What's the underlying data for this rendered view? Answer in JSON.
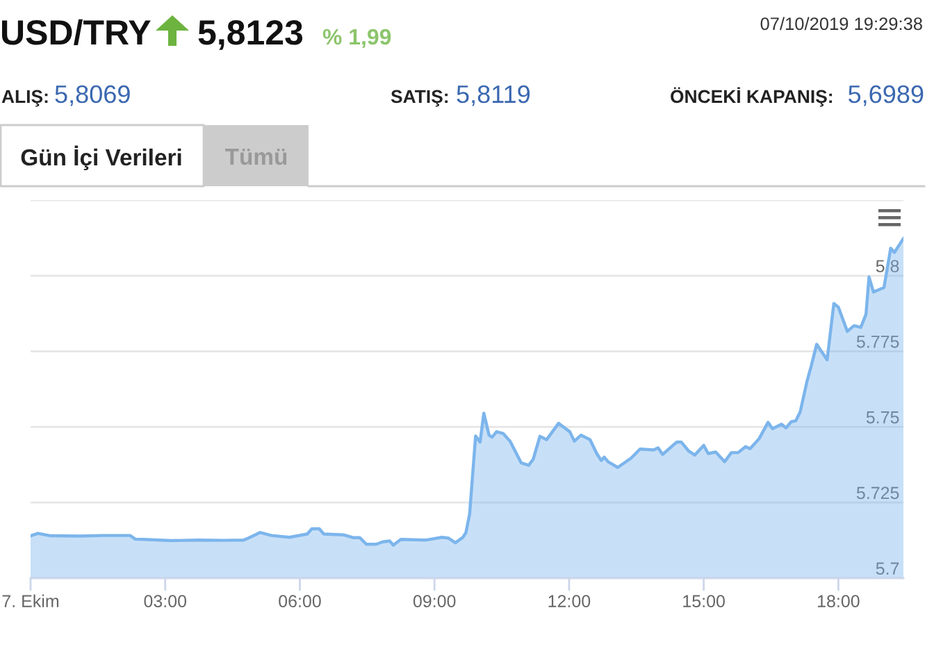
{
  "chart_data": {
    "type": "area",
    "title": "USD/TRY",
    "annotations": [
      "5,8123",
      "% 1,99",
      "07/10/2019 19:29:38",
      "ALIŞ:",
      "5,8069",
      "SATIŞ:",
      "5,8119",
      "ÖNCEKİ KAPANIŞ:",
      "5,6989",
      "Gün İçi Verileri",
      "Tümü"
    ],
    "x": [
      "2019-10-07T00:00",
      "2019-10-07T00:10",
      "2019-10-07T00:27",
      "2019-10-07T01:06",
      "2019-10-07T01:36",
      "2019-10-07T02:13",
      "2019-10-07T02:20",
      "2019-10-07T02:31",
      "2019-10-07T03:08",
      "2019-10-07T03:44",
      "2019-10-07T04:18",
      "2019-10-07T04:45",
      "2019-10-07T04:51",
      "2019-10-07T05:07",
      "2019-10-07T05:22",
      "2019-10-07T05:46",
      "2019-10-07T06:10",
      "2019-10-07T06:16",
      "2019-10-07T06:26",
      "2019-10-07T06:32",
      "2019-10-07T06:59",
      "2019-10-07T07:11",
      "2019-10-07T07:20",
      "2019-10-07T07:29",
      "2019-10-07T07:42",
      "2019-10-07T07:51",
      "2019-10-07T08:00",
      "2019-10-07T08:05",
      "2019-10-07T08:15",
      "2019-10-07T08:49",
      "2019-10-07T09:10",
      "2019-10-07T09:19",
      "2019-10-07T09:28",
      "2019-10-07T09:38",
      "2019-10-07T09:42",
      "2019-10-07T09:47",
      "2019-10-07T09:55",
      "2019-10-07T10:01",
      "2019-10-07T10:06",
      "2019-10-07T10:13",
      "2019-10-07T10:17",
      "2019-10-07T10:23",
      "2019-10-07T10:32",
      "2019-10-07T10:41",
      "2019-10-07T10:56",
      "2019-10-07T11:06",
      "2019-10-07T11:12",
      "2019-10-07T11:21",
      "2019-10-07T11:30",
      "2019-10-07T11:46",
      "2019-10-07T12:01",
      "2019-10-07T12:07",
      "2019-10-07T12:16",
      "2019-10-07T12:28",
      "2019-10-07T12:37",
      "2019-10-07T12:43",
      "2019-10-07T12:47",
      "2019-10-07T12:52",
      "2019-10-07T13:05",
      "2019-10-07T13:23",
      "2019-10-07T13:35",
      "2019-10-07T13:53",
      "2019-10-07T13:59",
      "2019-10-07T14:05",
      "2019-10-07T14:24",
      "2019-10-07T14:30",
      "2019-10-07T14:40",
      "2019-10-07T14:48",
      "2019-10-07T15:00",
      "2019-10-07T15:06",
      "2019-10-07T15:16",
      "2019-10-07T15:28",
      "2019-10-07T15:37",
      "2019-10-07T15:46",
      "2019-10-07T15:56",
      "2019-10-07T16:02",
      "2019-10-07T16:14",
      "2019-10-07T16:26",
      "2019-10-07T16:32",
      "2019-10-07T16:44",
      "2019-10-07T16:50",
      "2019-10-07T16:57",
      "2019-10-07T17:03",
      "2019-10-07T17:09",
      "2019-10-07T17:18",
      "2019-10-07T17:24",
      "2019-10-07T17:31",
      "2019-10-07T17:45",
      "2019-10-07T17:54",
      "2019-10-07T18:00",
      "2019-10-07T18:12",
      "2019-10-07T18:21",
      "2019-10-07T18:30",
      "2019-10-07T18:37",
      "2019-10-07T18:41",
      "2019-10-07T18:47",
      "2019-10-07T19:01",
      "2019-10-07T19:10",
      "2019-10-07T19:15",
      "2019-10-07T19:27"
    ],
    "series": [
      {
        "color": "#7cb5ec",
        "values": [
          5.714,
          5.7148,
          5.714,
          5.7139,
          5.7141,
          5.7141,
          5.7129,
          5.7128,
          5.7124,
          5.7126,
          5.7125,
          5.7126,
          5.7132,
          5.7151,
          5.7141,
          5.7135,
          5.7146,
          5.7163,
          5.7163,
          5.7146,
          5.7143,
          5.7134,
          5.7134,
          5.7112,
          5.7112,
          5.712,
          5.7123,
          5.7109,
          5.7128,
          5.7126,
          5.7135,
          5.7132,
          5.7117,
          5.7135,
          5.715,
          5.7212,
          5.747,
          5.745,
          5.7545,
          5.7473,
          5.7466,
          5.7484,
          5.7478,
          5.7453,
          5.7381,
          5.7373,
          5.7393,
          5.7469,
          5.7458,
          5.7512,
          5.7484,
          5.7453,
          5.7473,
          5.7458,
          5.7412,
          5.7389,
          5.74,
          5.7385,
          5.7366,
          5.7397,
          5.7427,
          5.7424,
          5.7431,
          5.7409,
          5.745,
          5.745,
          5.742,
          5.7407,
          5.7439,
          5.7412,
          5.7417,
          5.7385,
          5.7415,
          5.7415,
          5.7435,
          5.7428,
          5.7461,
          5.7515,
          5.7494,
          5.7509,
          5.7497,
          5.7517,
          5.752,
          5.755,
          5.765,
          5.7704,
          5.7773,
          5.7722,
          5.7908,
          5.7896,
          5.7816,
          5.7835,
          5.7829,
          5.7873,
          5.7996,
          5.7946,
          5.7961,
          5.8091,
          5.8077,
          5.8123
        ]
      }
    ],
    "xlim": [
      "2019-10-07T00:00",
      "2019-10-07T19:27"
    ],
    "xticks": [
      {
        "value": "2019-10-07T00:00",
        "label": "7. Ekim"
      },
      {
        "value": "2019-10-07T03:00",
        "label": "03:00"
      },
      {
        "value": "2019-10-07T06:00",
        "label": "06:00"
      },
      {
        "value": "2019-10-07T09:00",
        "label": "09:00"
      },
      {
        "value": "2019-10-07T12:00",
        "label": "12:00"
      },
      {
        "value": "2019-10-07T15:00",
        "label": "15:00"
      },
      {
        "value": "2019-10-07T18:00",
        "label": "18:00"
      }
    ],
    "ylim": [
      5.7,
      5.825
    ],
    "yticks": [
      5.7,
      5.725,
      5.75,
      5.775,
      5.8,
      {
        "value": 5.825,
        "label": null
      }
    ],
    "grid": "y"
  }
}
